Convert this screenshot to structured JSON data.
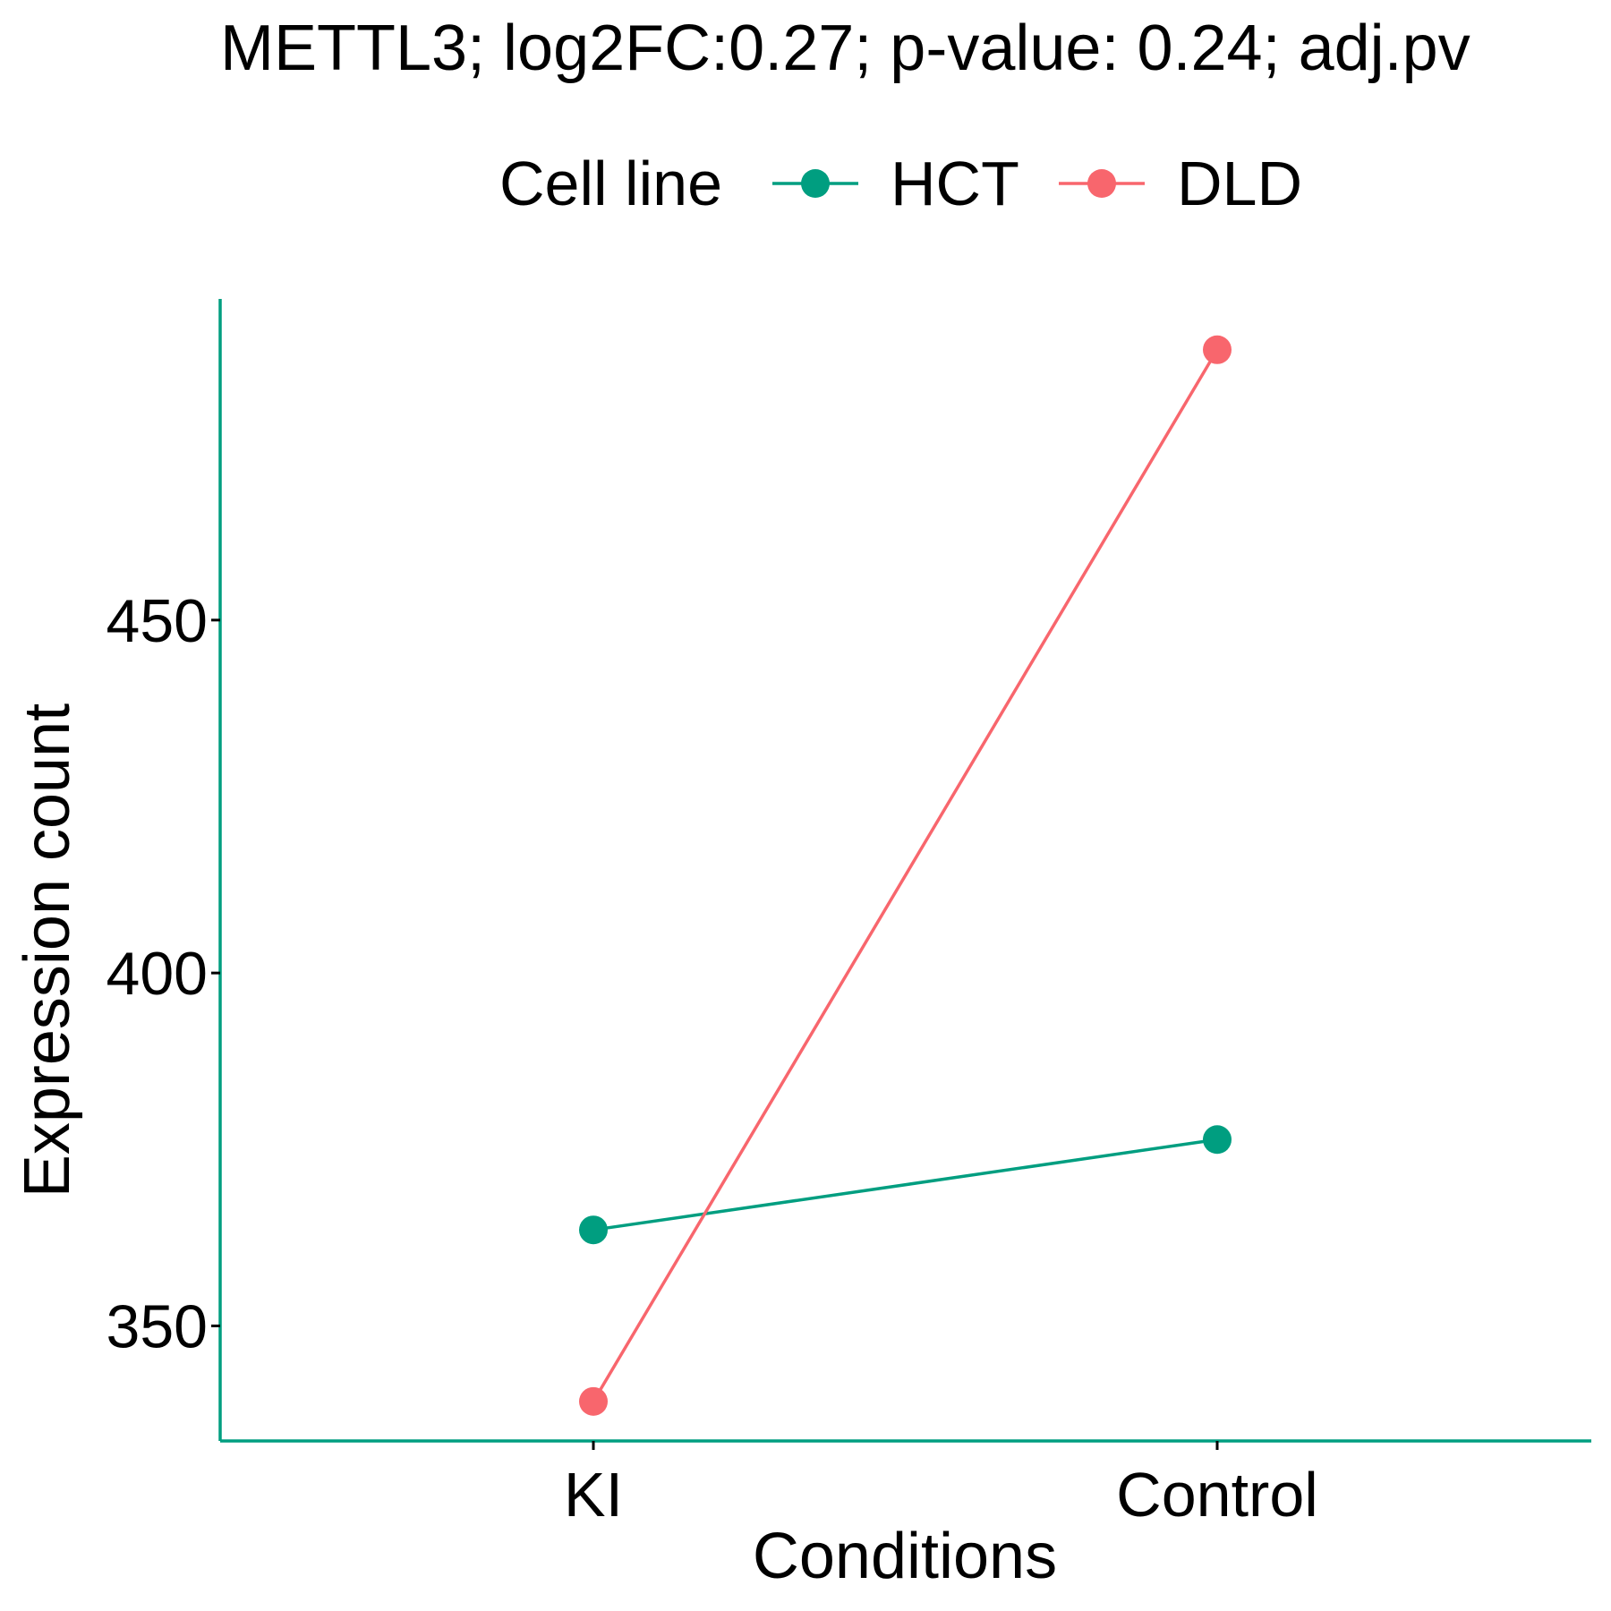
{
  "chart_data": {
    "type": "line",
    "title": "METTL3; log2FC:0.27; p-value: 0.24; adj.pv",
    "xlabel": "Conditions",
    "ylabel": "Expression count",
    "categories": [
      "KI",
      "Control"
    ],
    "yticks": [
      350,
      400,
      450
    ],
    "ylim": [
      333.7,
      495.5
    ],
    "grid": false,
    "legend": {
      "title": "Cell line",
      "position": "top"
    },
    "series": [
      {
        "name": "HCT",
        "color": "#009E80",
        "values": [
          363.6,
          376.4
        ]
      },
      {
        "name": "DLD",
        "color": "#F8666D",
        "values": [
          339.3,
          488.3
        ]
      }
    ],
    "axis_color": "#009E80"
  }
}
